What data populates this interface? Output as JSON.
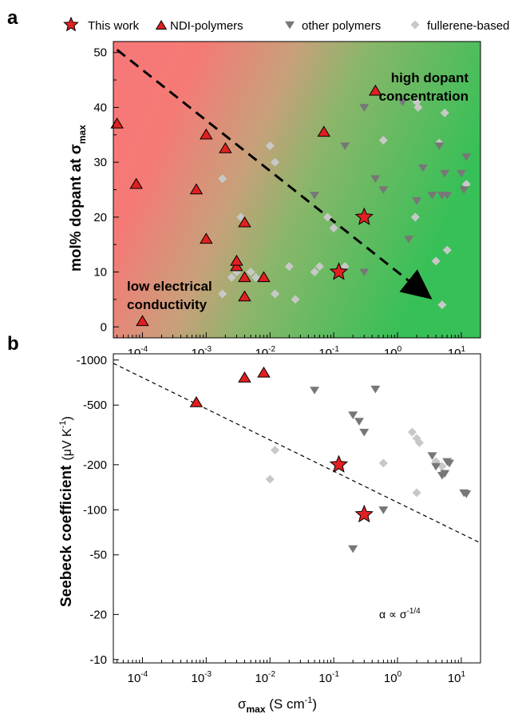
{
  "figure": {
    "panel_a_letter": "a",
    "panel_b_letter": "b",
    "legend": [
      {
        "label": "This work",
        "marker": "star",
        "color": "#e02020"
      },
      {
        "label": "NDI-polymers",
        "marker": "triangle-up",
        "color": "#e02020"
      },
      {
        "label": "other polymers",
        "marker": "triangle-down",
        "color": "#777777"
      },
      {
        "label": "fullerene-based",
        "marker": "diamond",
        "color": "#c8c8c8"
      }
    ],
    "colors": {
      "red_bg": "#f77878",
      "green_bg": "#3cc05a",
      "ndi": "#e02020",
      "other": "#777777",
      "fullerene": "#c8c8c8"
    }
  },
  "chart_data": [
    {
      "type": "scatter",
      "panel": "a",
      "xlabel_main": "",
      "ylabel_main": "mol% dopant at σ",
      "ylabel_sub": "max",
      "x_scale": "log",
      "xlim": [
        3.5e-05,
        20
      ],
      "ylim": [
        -2,
        52
      ],
      "x_ticks": [
        {
          "value": 0.0001,
          "base": "10",
          "exp": "-4"
        },
        {
          "value": 0.001,
          "base": "10",
          "exp": "-3"
        },
        {
          "value": 0.01,
          "base": "10",
          "exp": "-2"
        },
        {
          "value": 0.1,
          "base": "10",
          "exp": "-1"
        },
        {
          "value": 1,
          "base": "10",
          "exp": "0"
        },
        {
          "value": 10,
          "base": "10",
          "exp": "1"
        }
      ],
      "y_ticks": [
        "0",
        "10",
        "20",
        "30",
        "40",
        "50"
      ],
      "y_tick_values": [
        0,
        10,
        20,
        30,
        40,
        50
      ],
      "annotations": {
        "top_right_line1": "high dopant",
        "top_right_line2": "concentration",
        "bottom_left_line1": "low electrical",
        "bottom_left_line2": "conductivity"
      },
      "arrow": {
        "from": [
          4e-05,
          50.5
        ],
        "to": [
          3.5,
          5
        ]
      },
      "series": [
        {
          "name": "This work",
          "marker": "star",
          "points": [
            [
              0.12,
              10
            ],
            [
              0.3,
              20
            ]
          ]
        },
        {
          "name": "NDI-polymers",
          "marker": "triangle-up",
          "points": [
            [
              4e-05,
              37
            ],
            [
              8e-05,
              26
            ],
            [
              0.0001,
              1
            ],
            [
              0.0007,
              25
            ],
            [
              0.001,
              35
            ],
            [
              0.001,
              16
            ],
            [
              0.002,
              32.5
            ],
            [
              0.003,
              11
            ],
            [
              0.003,
              12
            ],
            [
              0.004,
              9
            ],
            [
              0.004,
              5.5
            ],
            [
              0.004,
              19
            ],
            [
              0.008,
              9
            ],
            [
              0.07,
              35.5
            ],
            [
              0.45,
              43
            ]
          ]
        },
        {
          "name": "other polymers",
          "marker": "triangle-down",
          "points": [
            [
              0.05,
              24
            ],
            [
              0.15,
              33
            ],
            [
              0.3,
              40
            ],
            [
              0.3,
              10
            ],
            [
              0.45,
              27
            ],
            [
              0.6,
              25
            ],
            [
              1.2,
              41
            ],
            [
              1.5,
              16
            ],
            [
              2.0,
              23
            ],
            [
              2.5,
              29
            ],
            [
              3.5,
              24
            ],
            [
              4.5,
              33
            ],
            [
              5.0,
              24
            ],
            [
              5.5,
              28
            ],
            [
              6.0,
              24
            ],
            [
              10,
              28
            ],
            [
              11,
              25
            ],
            [
              12,
              31
            ]
          ]
        },
        {
          "name": "fullerene-based",
          "marker": "diamond",
          "points": [
            [
              0.0018,
              27
            ],
            [
              0.0018,
              6
            ],
            [
              0.0025,
              9
            ],
            [
              0.003,
              10
            ],
            [
              0.0035,
              20
            ],
            [
              0.005,
              10
            ],
            [
              0.006,
              9
            ],
            [
              0.01,
              33
            ],
            [
              0.012,
              30
            ],
            [
              0.012,
              6
            ],
            [
              0.02,
              11
            ],
            [
              0.025,
              5
            ],
            [
              0.05,
              10
            ],
            [
              0.06,
              11
            ],
            [
              0.08,
              20
            ],
            [
              0.1,
              18
            ],
            [
              0.15,
              11
            ],
            [
              0.6,
              34
            ],
            [
              1.9,
              20
            ],
            [
              2.0,
              41
            ],
            [
              2.1,
              40
            ],
            [
              4.0,
              12
            ],
            [
              4.5,
              33.5
            ],
            [
              5.0,
              4
            ],
            [
              5.5,
              39
            ],
            [
              6.0,
              14
            ],
            [
              12,
              26
            ]
          ]
        }
      ]
    },
    {
      "type": "scatter",
      "panel": "b",
      "xlabel_main": "σ",
      "xlabel_sub": "max",
      "xlabel_unit": " (S cm",
      "xlabel_unit_exp": "-1",
      "xlabel_close": ")",
      "ylabel_main": "Seebeck coefficient",
      "ylabel_unit": "(μV K",
      "ylabel_unit_exp": "-1",
      "ylabel_close": ")",
      "x_scale": "log",
      "y_scale": "log (negative values)",
      "xlim": [
        3.5e-05,
        20
      ],
      "ylim": [
        -1100,
        -9.5
      ],
      "x_ticks": [
        {
          "value": 0.0001,
          "base": "10",
          "exp": "-4"
        },
        {
          "value": 0.001,
          "base": "10",
          "exp": "-3"
        },
        {
          "value": 0.01,
          "base": "10",
          "exp": "-2"
        },
        {
          "value": 0.1,
          "base": "10",
          "exp": "-1"
        },
        {
          "value": 1,
          "base": "10",
          "exp": "0"
        },
        {
          "value": 10,
          "base": "10",
          "exp": "1"
        }
      ],
      "y_ticks": [
        "-1000",
        "-500",
        "-200",
        "-100",
        "-50",
        "-20",
        "-10"
      ],
      "y_tick_values": [
        -1000,
        -500,
        -200,
        -100,
        -50,
        -20,
        -10
      ],
      "fit_line": {
        "label_main": "α ∝ σ",
        "label_exp": "-1/4",
        "from": [
          3.5e-05,
          -950
        ],
        "to": [
          20,
          -60
        ]
      },
      "series": [
        {
          "name": "This work",
          "marker": "star",
          "points": [
            [
              0.12,
              -200
            ],
            [
              0.3,
              -93
            ]
          ]
        },
        {
          "name": "NDI-polymers",
          "marker": "triangle-up",
          "points": [
            [
              0.0007,
              -520
            ],
            [
              0.004,
              -760
            ],
            [
              0.008,
              -820
            ]
          ]
        },
        {
          "name": "other polymers",
          "marker": "triangle-down",
          "points": [
            [
              0.05,
              -630
            ],
            [
              0.2,
              -430
            ],
            [
              0.25,
              -390
            ],
            [
              0.3,
              -330
            ],
            [
              0.45,
              -640
            ],
            [
              0.6,
              -100
            ],
            [
              0.2,
              -55
            ],
            [
              3.5,
              -230
            ],
            [
              4.0,
              -195
            ],
            [
              5.0,
              -170
            ],
            [
              5.5,
              -175
            ],
            [
              6.0,
              -210
            ],
            [
              6.5,
              -205
            ],
            [
              11,
              -130
            ],
            [
              12,
              -128
            ]
          ]
        },
        {
          "name": "fullerene-based",
          "marker": "diamond",
          "points": [
            [
              0.012,
              -250
            ],
            [
              0.01,
              -160
            ],
            [
              0.6,
              -205
            ],
            [
              1.7,
              -330
            ],
            [
              2.0,
              -300
            ],
            [
              2.2,
              -280
            ],
            [
              4.0,
              -210
            ],
            [
              5.0,
              -195
            ],
            [
              2.0,
              -130
            ]
          ]
        }
      ]
    }
  ]
}
